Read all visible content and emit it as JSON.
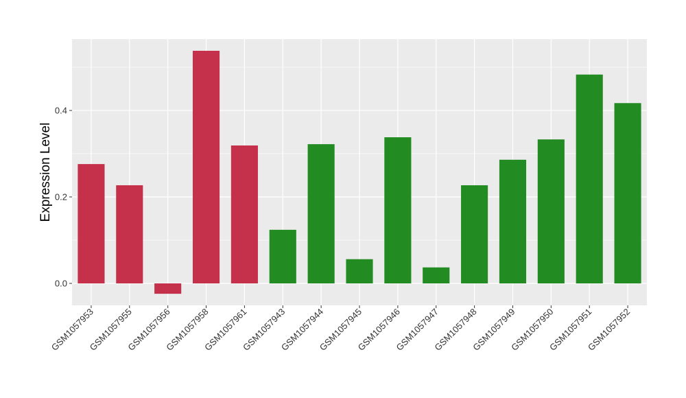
{
  "chart_data": {
    "type": "bar",
    "y_label": "Expression Level",
    "categories": [
      "GSM1057953",
      "GSM1057955",
      "GSM1057956",
      "GSM1057958",
      "GSM1057961",
      "GSM1057943",
      "GSM1057944",
      "GSM1057945",
      "GSM1057946",
      "GSM1057947",
      "GSM1057948",
      "GSM1057949",
      "GSM1057950",
      "GSM1057951",
      "GSM1057952"
    ],
    "values": [
      0.276,
      0.227,
      -0.024,
      0.538,
      0.319,
      0.124,
      0.322,
      0.056,
      0.338,
      0.037,
      0.227,
      0.286,
      0.333,
      0.483,
      0.417
    ],
    "colors": [
      "#c5304a",
      "#c5304a",
      "#c5304a",
      "#c5304a",
      "#c5304a",
      "#228b22",
      "#228b22",
      "#228b22",
      "#228b22",
      "#228b22",
      "#228b22",
      "#228b22",
      "#228b22",
      "#228b22",
      "#228b22"
    ],
    "ylim": [
      -0.0508,
      0.565
    ],
    "yticks": [
      {
        "value": 0,
        "label": "0.0"
      },
      0.2,
      0.4
    ],
    "minor_yticks": [
      0.1,
      0.3,
      0.5
    ],
    "grid": true
  }
}
